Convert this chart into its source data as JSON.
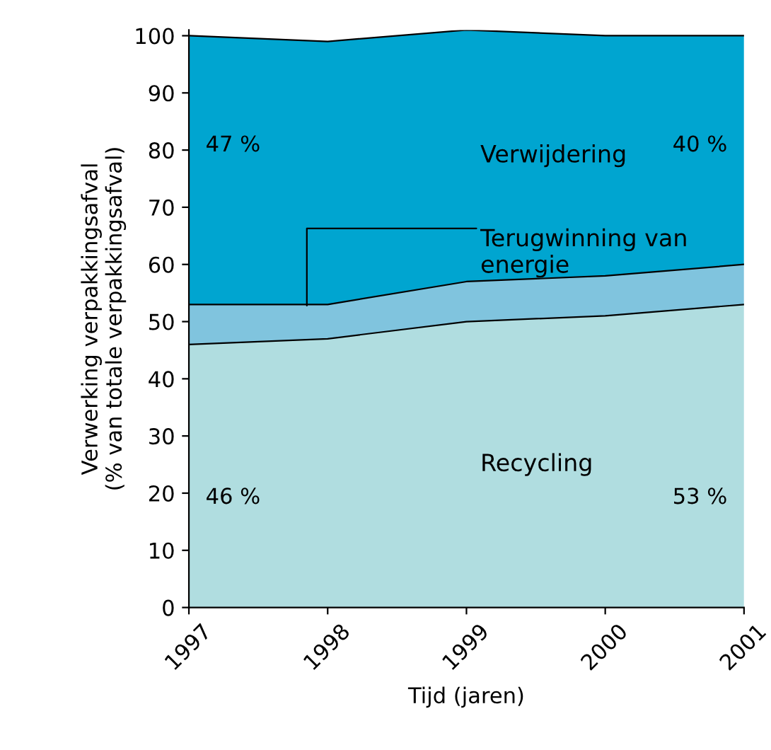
{
  "chart_data": {
    "type": "area",
    "stacked": true,
    "xlabel": "Tijd (jaren)",
    "ylabel": "Verwerking verpakkingsafval\n(% van totale verpakkingsafval)",
    "x": [
      1997,
      1998,
      1999,
      2000,
      2001
    ],
    "series": [
      {
        "name": "Recycling",
        "color": "#b0dde0",
        "values": [
          46,
          47,
          50,
          51,
          53
        ]
      },
      {
        "name": "Terugwinning van\nenergie",
        "color": "#80c4de",
        "values": [
          7,
          6,
          7,
          7,
          7
        ]
      },
      {
        "name": "Verwijdering",
        "color": "#00a5d0",
        "values": [
          47,
          46,
          44,
          42,
          40
        ]
      }
    ],
    "annotations": [
      "47 %",
      "40 %",
      "46 %",
      "53 %"
    ],
    "xlim": [
      1997,
      2001
    ],
    "xticks": [
      1997,
      1998,
      1999,
      2000,
      2001
    ],
    "ylim": [
      0,
      101
    ],
    "yticks": [
      0,
      10,
      20,
      30,
      40,
      50,
      60,
      70,
      80,
      90,
      100
    ],
    "grid": false,
    "legend": false
  }
}
